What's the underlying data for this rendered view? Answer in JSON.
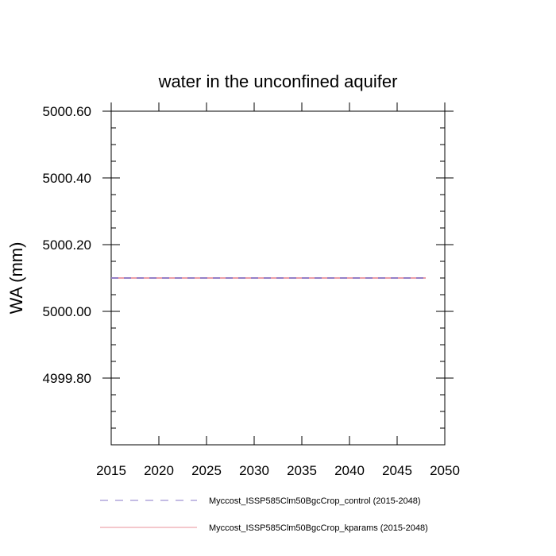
{
  "chart_data": {
    "type": "line",
    "title": "water in the unconfined aquifer",
    "xlabel": "",
    "ylabel": "WA  (mm)",
    "xlim": [
      2015,
      2050
    ],
    "ylim": [
      4999.6,
      5000.6
    ],
    "x_ticks": [
      2015,
      2020,
      2025,
      2030,
      2035,
      2040,
      2045,
      2050
    ],
    "x_tick_labels": [
      "2015",
      "2020",
      "2025",
      "2030",
      "2035",
      "2040",
      "2045",
      "2050"
    ],
    "y_ticks": [
      4999.8,
      5000.0,
      5000.2,
      5000.4,
      5000.6
    ],
    "y_tick_labels": [
      "4999.80",
      "5000.00",
      "5000.20",
      "5000.40",
      "5000.60"
    ],
    "grid": false,
    "legend_position": "bottom",
    "series": [
      {
        "name": "Myccost_ISSP585Clm50BgcCrop_control (2015-2048)",
        "color": "#8878c8",
        "dash": "dashed",
        "x": [
          2015,
          2048
        ],
        "y": [
          5000.1,
          5000.1
        ]
      },
      {
        "name": "Myccost_ISSP585Clm50BgcCrop_kparams (2015-2048)",
        "color": "#e8909a",
        "dash": "solid",
        "x": [
          2015,
          2048
        ],
        "y": [
          5000.1,
          5000.1
        ]
      }
    ]
  }
}
